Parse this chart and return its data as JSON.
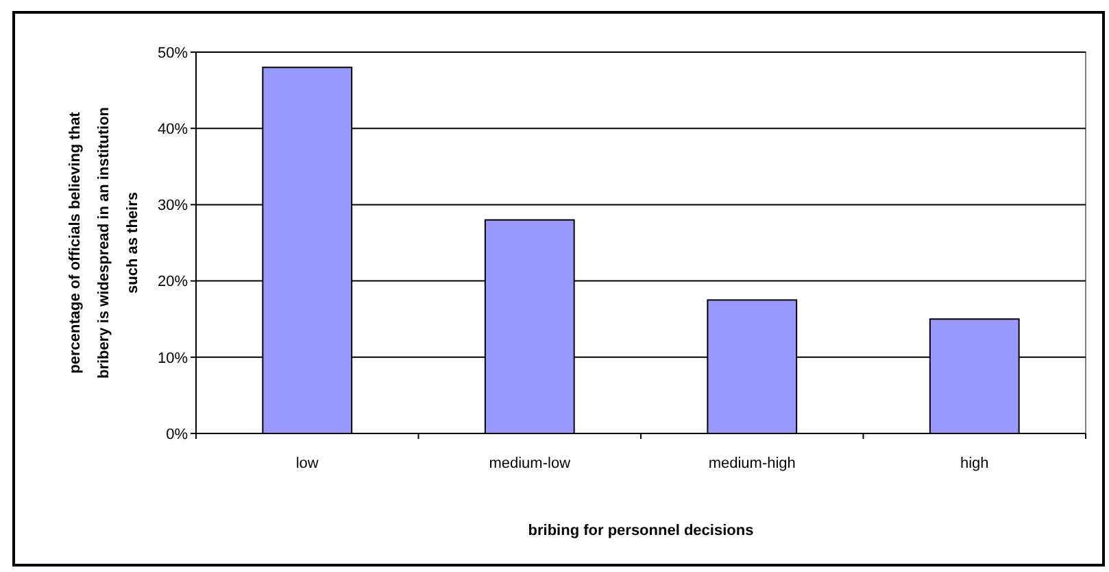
{
  "chart_data": {
    "type": "bar",
    "xlabel": "bribing for personnel decisions",
    "ylabel": "percentage of officials believing that bribery is widespread in an institution such as theirs",
    "categories": [
      "low",
      "medium-low",
      "medium-high",
      "high"
    ],
    "values": [
      0.48,
      0.28,
      0.175,
      0.15
    ],
    "color": "#9999ff",
    "ylim": [
      0,
      0.5
    ],
    "yticks": [
      {
        "value": 0,
        "label": "0%"
      },
      {
        "value": 0.1,
        "label": "10%"
      },
      {
        "value": 0.2,
        "label": "20%"
      },
      {
        "value": 0.3,
        "label": "30%"
      },
      {
        "value": 0.4,
        "label": "40%"
      },
      {
        "value": 0.5,
        "label": "50%"
      }
    ],
    "grid": "y"
  }
}
